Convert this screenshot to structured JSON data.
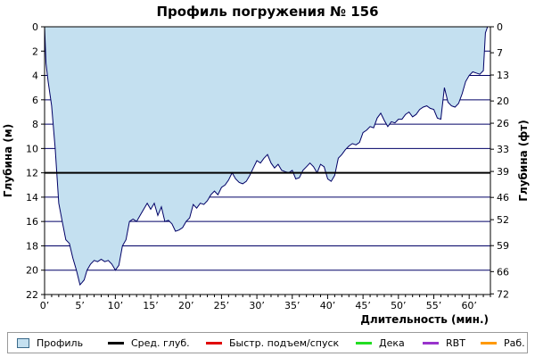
{
  "chart_data": {
    "type": "area",
    "title": "Профиль погружения № 156",
    "xlabel": "Длительность (мин.)",
    "ylabel": "Глубина (м)",
    "y2label": "Глубина (фт)",
    "xlim": [
      0,
      63
    ],
    "ylim": [
      0,
      22
    ],
    "y_inverted": true,
    "grid": true,
    "x_ticks": [
      0,
      5,
      10,
      15,
      20,
      25,
      30,
      35,
      40,
      45,
      50,
      55,
      60
    ],
    "x_tick_labels": [
      "0’",
      "5’",
      "10’",
      "15’",
      "20’",
      "25’",
      "30’",
      "35’",
      "40’",
      "45’",
      "50’",
      "55’",
      "60’"
    ],
    "y_ticks": [
      0,
      2,
      4,
      6,
      8,
      10,
      12,
      14,
      16,
      18,
      20,
      22
    ],
    "y_tick_labels": [
      "0",
      "2",
      "4",
      "6",
      "8",
      "10",
      "12",
      "14",
      "16",
      "18",
      "20",
      "22"
    ],
    "y2_ticks": [
      0,
      7,
      13,
      20,
      26,
      33,
      39,
      46,
      52,
      59,
      66,
      72
    ],
    "y2_tick_labels": [
      "0",
      "7",
      "13",
      "20",
      "26",
      "33",
      "39",
      "46",
      "52",
      "59",
      "66",
      "72"
    ],
    "avg_depth": 12,
    "colors": {
      "fill": "#c4e0f0",
      "profile": "#000066",
      "avg": "#000000"
    },
    "series": [
      {
        "name": "Профиль",
        "x": [
          0,
          0.2,
          0.5,
          1.0,
          1.5,
          2.0,
          2.5,
          3.0,
          3.5,
          4.0,
          4.5,
          5.0,
          5.3,
          5.6,
          6.0,
          6.5,
          7.0,
          7.5,
          8.0,
          8.5,
          9.0,
          9.5,
          10.0,
          10.5,
          11.0,
          11.5,
          12.0,
          12.5,
          13.0,
          13.5,
          14.0,
          14.5,
          15.0,
          15.5,
          16.0,
          16.5,
          17.0,
          17.5,
          18.0,
          18.5,
          19.0,
          19.5,
          20.0,
          20.5,
          21.0,
          21.5,
          22.0,
          22.5,
          23.0,
          23.5,
          24.0,
          24.5,
          25.0,
          25.5,
          26.0,
          26.5,
          27.0,
          27.5,
          28.0,
          28.5,
          29.0,
          29.5,
          30.0,
          30.5,
          31.0,
          31.5,
          32.0,
          32.5,
          33.0,
          33.5,
          34.0,
          34.5,
          35.0,
          35.5,
          36.0,
          36.5,
          37.0,
          37.5,
          38.0,
          38.5,
          39.0,
          39.5,
          40.0,
          40.5,
          41.0,
          41.5,
          42.0,
          42.5,
          43.0,
          43.5,
          44.0,
          44.5,
          45.0,
          45.5,
          46.0,
          46.5,
          47.0,
          47.5,
          48.0,
          48.5,
          49.0,
          49.5,
          50.0,
          50.5,
          51.0,
          51.5,
          52.0,
          52.5,
          53.0,
          53.5,
          54.0,
          54.5,
          55.0,
          55.5,
          56.0,
          56.5,
          57.0,
          57.5,
          58.0,
          58.5,
          59.0,
          59.5,
          60.0,
          60.5,
          61.0,
          61.5,
          62.0,
          62.3,
          62.6,
          63.0
        ],
        "values": [
          0,
          3,
          4.5,
          6.5,
          10,
          14.5,
          16,
          17.5,
          17.8,
          19,
          20,
          21.2,
          21,
          20.8,
          20,
          19.5,
          19.2,
          19.3,
          19.1,
          19.3,
          19.2,
          19.5,
          20,
          19.6,
          18,
          17.5,
          16,
          15.8,
          16,
          15.5,
          15,
          14.5,
          15,
          14.5,
          15.5,
          14.8,
          16,
          15.9,
          16.2,
          16.8,
          16.7,
          16.5,
          16,
          15.7,
          14.6,
          14.9,
          14.5,
          14.6,
          14.3,
          13.8,
          13.5,
          13.8,
          13.2,
          13.0,
          12.6,
          12.0,
          12.5,
          12.8,
          12.9,
          12.7,
          12.2,
          11.6,
          11.0,
          11.2,
          10.8,
          10.5,
          11.2,
          11.6,
          11.3,
          11.8,
          11.9,
          12.0,
          11.8,
          12.5,
          12.4,
          11.8,
          11.5,
          11.2,
          11.5,
          12.0,
          11.3,
          11.5,
          12.5,
          12.7,
          12.2,
          10.8,
          10.5,
          10.1,
          9.8,
          9.6,
          9.7,
          9.5,
          8.7,
          8.5,
          8.2,
          8.3,
          7.5,
          7.1,
          7.7,
          8.2,
          7.8,
          7.9,
          7.6,
          7.6,
          7.2,
          7.0,
          7.4,
          7.2,
          6.8,
          6.6,
          6.5,
          6.7,
          6.8,
          7.5,
          7.6,
          5.0,
          6.2,
          6.5,
          6.6,
          6.3,
          5.5,
          4.5,
          4.0,
          3.7,
          3.8,
          3.9,
          3.6,
          0.5,
          0,
          0
        ]
      }
    ]
  },
  "legend": {
    "items": [
      {
        "label": "Профиль",
        "kind": "swatch",
        "color": "#c4e0f0"
      },
      {
        "label": "Сред. глуб.",
        "kind": "line",
        "color": "#000000"
      },
      {
        "label": "Быстр. подъем/спуск",
        "kind": "line",
        "color": "#e00000"
      },
      {
        "label": "Дека",
        "kind": "line",
        "color": "#22dd22"
      },
      {
        "label": "RBT",
        "kind": "line",
        "color": "#9933cc"
      },
      {
        "label": "Раб.",
        "kind": "line",
        "color": "#ff9900"
      }
    ]
  }
}
